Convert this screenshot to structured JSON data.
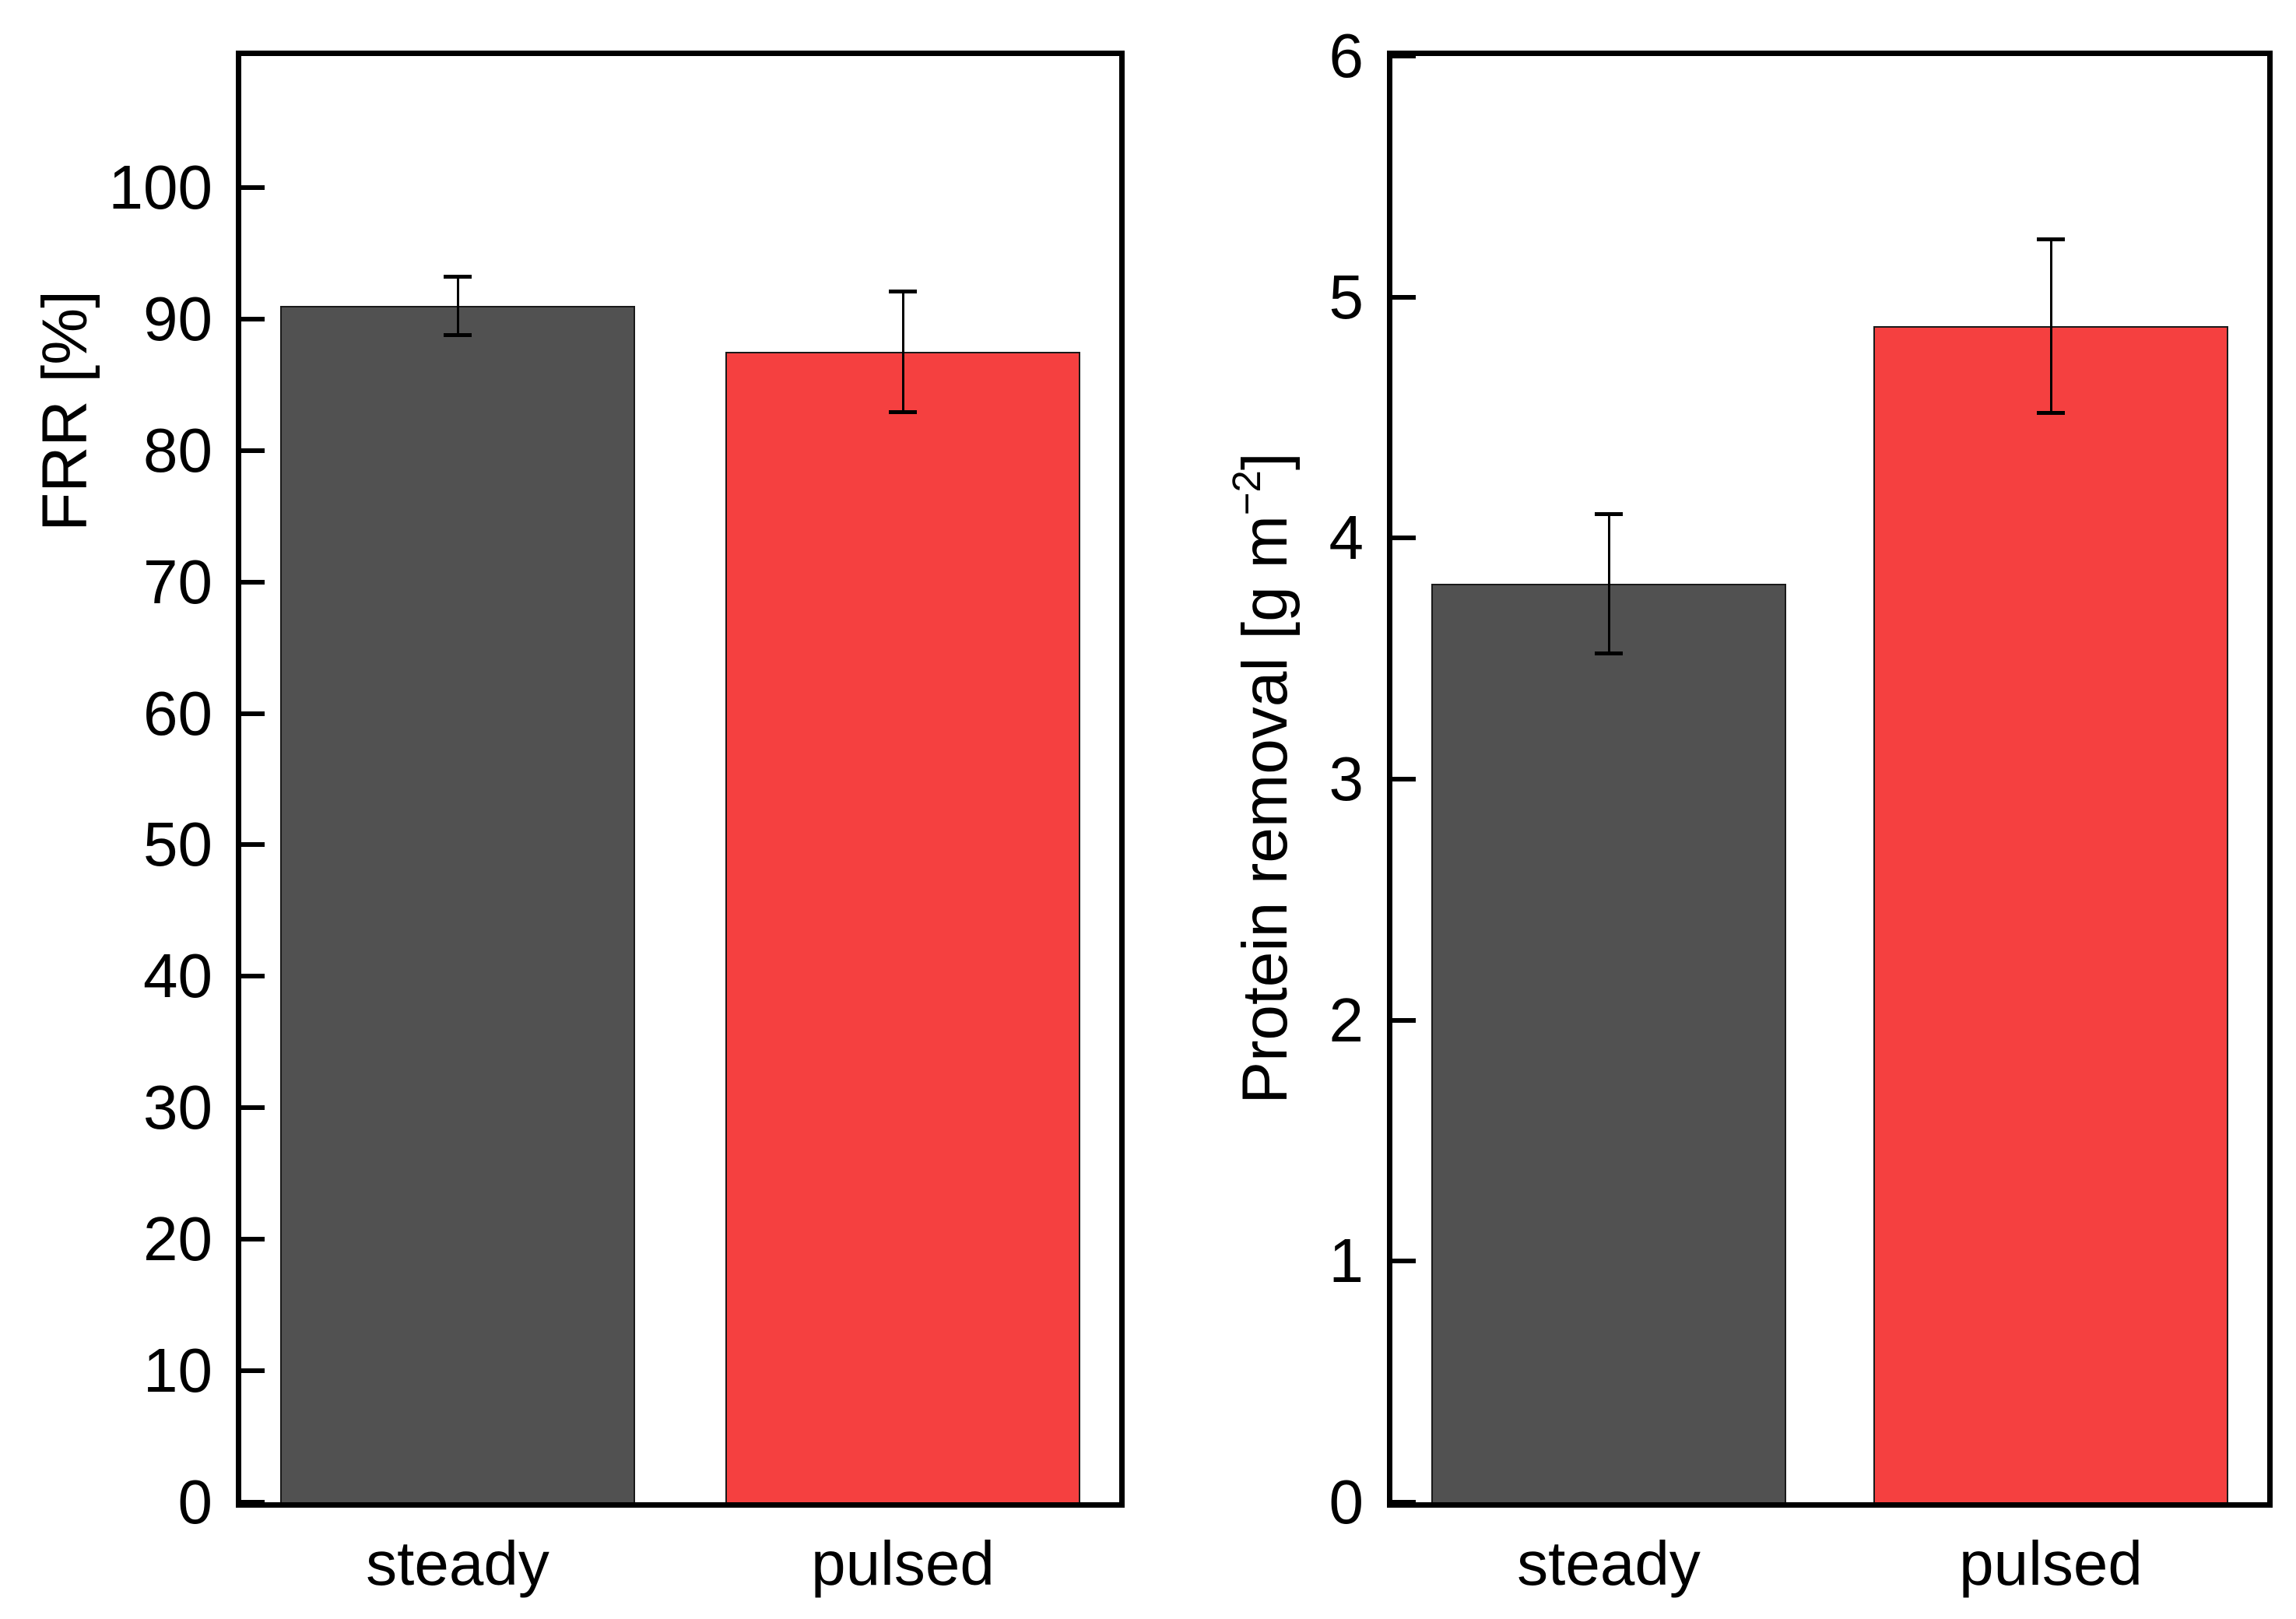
{
  "figure": {
    "description": "Two-panel bar chart comparing steady vs pulsed operation"
  },
  "colors": {
    "background": "#ffffff",
    "steady_bar": "#515151",
    "pulsed_bar": "#f54040",
    "bar_outline": "#1a1a1a",
    "axis": "#000000",
    "error_bar": "#000000",
    "text": "#000000"
  },
  "chart_data": [
    {
      "type": "bar",
      "panel": "left",
      "title": "",
      "ylabel": "FRR [%]",
      "xlabel": "",
      "categories": [
        "steady",
        "pulsed"
      ],
      "values": [
        91.0,
        87.5
      ],
      "errors": [
        2.2,
        4.6
      ],
      "bar_colors": [
        "#515151",
        "#f54040"
      ],
      "ylim": [
        0,
        110
      ],
      "yticks": [
        0,
        10,
        20,
        30,
        40,
        50,
        60,
        70,
        80,
        90,
        100
      ],
      "legend": "none",
      "grid": false
    },
    {
      "type": "bar",
      "panel": "right",
      "title": "",
      "ylabel": "Protein removal [g m⁻²]",
      "ylabel_parts": {
        "pre": "Protein removal [g m",
        "sup": "−2",
        "post": "]"
      },
      "xlabel": "",
      "categories": [
        "steady",
        "pulsed"
      ],
      "values": [
        3.81,
        4.88
      ],
      "errors": [
        0.29,
        0.36
      ],
      "bar_colors": [
        "#515151",
        "#f54040"
      ],
      "ylim": [
        0,
        6
      ],
      "yticks": [
        0,
        1,
        2,
        3,
        4,
        5,
        6
      ],
      "legend": "none",
      "grid": false
    }
  ]
}
